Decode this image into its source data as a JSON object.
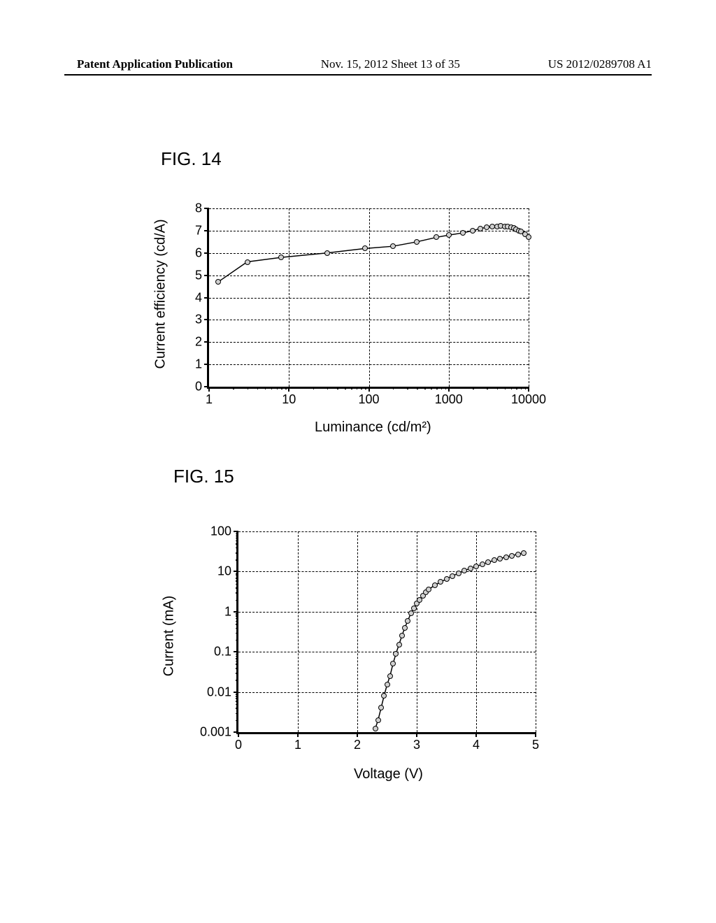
{
  "header": {
    "left": "Patent Application Publication",
    "center": "Nov. 15, 2012  Sheet 13 of 35",
    "right": "US 2012/0289708 A1"
  },
  "fig14": {
    "label": "FIG. 14",
    "type": "line-scatter",
    "xlabel": "Luminance (cd/m²)",
    "ylabel": "Current efficiency (cd/A)",
    "label_fontsize": 20,
    "tick_fontsize": 18,
    "xscale": "log",
    "yscale": "linear",
    "xlim": [
      1,
      10000
    ],
    "ylim": [
      0,
      8
    ],
    "xticks": [
      1,
      10,
      100,
      1000,
      10000
    ],
    "xtick_labels": [
      "1",
      "10",
      "100",
      "1000",
      "10000"
    ],
    "yticks": [
      0,
      1,
      2,
      3,
      4,
      5,
      6,
      7,
      8
    ],
    "ytick_labels": [
      "0",
      "1",
      "2",
      "3",
      "4",
      "5",
      "6",
      "7",
      "8"
    ],
    "grid_color": "#000000",
    "grid_style": "dashed",
    "background_color": "#ffffff",
    "line_color": "#000000",
    "line_width": 1.5,
    "marker_style": "circle",
    "marker_size": 8,
    "marker_fill": "#d0d0d0",
    "marker_edge": "#000000",
    "x": [
      1.3,
      3,
      8,
      30,
      90,
      200,
      400,
      700,
      1000,
      1500,
      2000,
      2500,
      3000,
      3500,
      4000,
      4500,
      5000,
      5500,
      6000,
      6500,
      7000,
      7500,
      8000,
      9000,
      10000
    ],
    "y": [
      4.7,
      5.6,
      5.8,
      6.0,
      6.2,
      6.3,
      6.5,
      6.7,
      6.8,
      6.9,
      7.0,
      7.1,
      7.15,
      7.18,
      7.2,
      7.22,
      7.2,
      7.18,
      7.15,
      7.12,
      7.05,
      7.0,
      6.95,
      6.85,
      6.7
    ]
  },
  "fig15": {
    "label": "FIG. 15",
    "type": "line-scatter",
    "xlabel": "Voltage (V)",
    "ylabel": "Current (mA)",
    "label_fontsize": 20,
    "tick_fontsize": 18,
    "xscale": "linear",
    "yscale": "log",
    "xlim": [
      0,
      5
    ],
    "ylim": [
      0.001,
      100
    ],
    "xticks": [
      0,
      1,
      2,
      3,
      4,
      5
    ],
    "xtick_labels": [
      "0",
      "1",
      "2",
      "3",
      "4",
      "5"
    ],
    "yticks": [
      0.001,
      0.01,
      0.1,
      1,
      10,
      100
    ],
    "ytick_labels": [
      "0.001",
      "0.01",
      "0.1",
      "1",
      "10",
      "100"
    ],
    "grid_color": "#000000",
    "grid_style": "dashed",
    "background_color": "#ffffff",
    "line_color": "#000000",
    "line_width": 1.5,
    "marker_style": "circle",
    "marker_size": 8,
    "marker_fill": "#d0d0d0",
    "marker_edge": "#000000",
    "x": [
      2.3,
      2.35,
      2.4,
      2.45,
      2.5,
      2.55,
      2.6,
      2.65,
      2.7,
      2.75,
      2.8,
      2.85,
      2.9,
      2.95,
      3.0,
      3.05,
      3.1,
      3.15,
      3.2,
      3.3,
      3.4,
      3.5,
      3.6,
      3.7,
      3.8,
      3.9,
      4.0,
      4.1,
      4.2,
      4.3,
      4.4,
      4.5,
      4.6,
      4.7,
      4.8
    ],
    "y": [
      0.0012,
      0.002,
      0.004,
      0.008,
      0.015,
      0.025,
      0.05,
      0.09,
      0.15,
      0.25,
      0.4,
      0.6,
      0.9,
      1.2,
      1.6,
      2.0,
      2.5,
      3.0,
      3.6,
      4.5,
      5.5,
      6.5,
      7.8,
      9.0,
      10.5,
      12.0,
      13.5,
      15.0,
      17.0,
      19.0,
      21.0,
      23.0,
      25.0,
      27.0,
      29.0
    ]
  }
}
